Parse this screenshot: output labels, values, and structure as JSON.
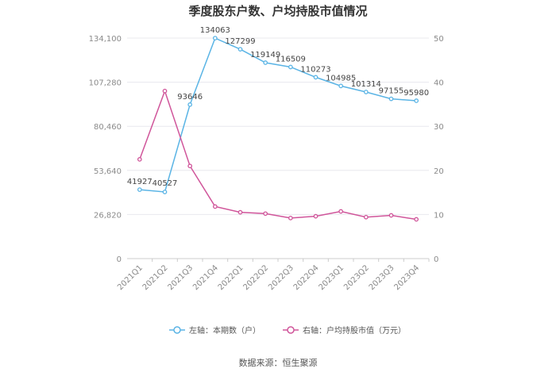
{
  "chart_data": {
    "type": "line",
    "title": "季度股东户数、户均持股市值情况",
    "categories": [
      "2021Q1",
      "2021Q2",
      "2021Q3",
      "2021Q4",
      "2022Q1",
      "2022Q2",
      "2022Q3",
      "2022Q4",
      "2023Q1",
      "2023Q2",
      "2023Q3",
      "2023Q4"
    ],
    "left_axis": {
      "ticks": [
        "0",
        "26,820",
        "53,640",
        "80,460",
        "107,280",
        "134,100"
      ],
      "ylim": [
        0,
        134100
      ]
    },
    "right_axis": {
      "ticks": [
        "0",
        "10",
        "20",
        "30",
        "40",
        "50"
      ],
      "ylim": [
        0,
        50
      ]
    },
    "series": [
      {
        "name": "左轴：本期数（户）",
        "axis": "left",
        "color": "#5ab4e5",
        "values": [
          41927,
          40527,
          93646,
          134063,
          127299,
          119149,
          116509,
          110273,
          104985,
          101314,
          97155,
          95980
        ],
        "labels": [
          "41927",
          "40527",
          "93646",
          "134063",
          "127299",
          "119149",
          "116509",
          "110273",
          "104985",
          "101314",
          "97155",
          "95980"
        ]
      },
      {
        "name": "右轴：户均持股市值（万元）",
        "axis": "right",
        "color": "#d0559a",
        "values": [
          22.5,
          38.0,
          21.0,
          11.8,
          10.5,
          10.2,
          9.2,
          9.6,
          10.7,
          9.4,
          9.8,
          8.9
        ]
      }
    ],
    "grid": true,
    "legend_position": "bottom"
  },
  "source": "数据来源：恒生聚源"
}
